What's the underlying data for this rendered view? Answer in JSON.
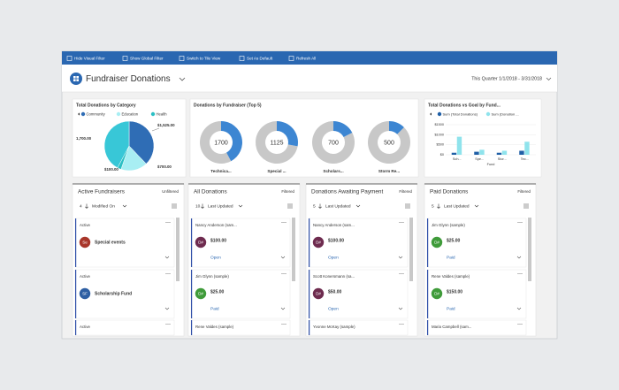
{
  "toolbar": [
    "Hide Visual Filter",
    "Show Global Filter",
    "Switch to Tile View",
    "Set As Default",
    "Refresh All"
  ],
  "header": {
    "title": "Fundraiser Donations",
    "period": "This Quarter 1/1/2018 - 3/31/2018"
  },
  "charts": [
    {
      "type": "pie",
      "title": "Total Donations by Category",
      "legend": [
        {
          "name": "Community",
          "color": "#2f6db5"
        },
        {
          "name": "Education",
          "color": "#a8eef3"
        },
        {
          "name": "Health",
          "color": "#2bbfc4"
        }
      ],
      "values": [
        1525,
        700,
        100,
        1700
      ],
      "value_labels": [
        "$1,525.00",
        "$700.00",
        "$100.00",
        "1,700.00"
      ],
      "colors": [
        "#2f6db5",
        "#a8eef3",
        "#2bbfc4",
        "#38c7d7"
      ]
    },
    {
      "type": "donut",
      "title": "Donations by Fundraiser (Top 5)",
      "categories": [
        "Technica...",
        "Special ...",
        "Scholars...",
        "Storm Re..."
      ],
      "values": [
        1700,
        1125,
        700,
        500
      ],
      "color": "#3d86d2",
      "rest_color": "#c8c8c8"
    },
    {
      "type": "bar",
      "title": "Total Donations vs Goal by Fund...",
      "x_label": "Fund",
      "categories": [
        "Sch...",
        "Spe...",
        "Stor...",
        "Tec..."
      ],
      "series": [
        {
          "name": "Sum (Total Donations)",
          "color": "#1f5fa6",
          "values": [
            100,
            150,
            100,
            200
          ]
        },
        {
          "name": "Sum (Donation ...",
          "color": "#8fe3ec",
          "values": [
            900,
            250,
            200,
            650
          ]
        }
      ],
      "ylim": [
        0,
        1500
      ],
      "yticks": [
        {
          "value": 0,
          "label": "$0"
        },
        {
          "value": 500,
          "label": "$500"
        },
        {
          "value": 1000,
          "label": "$1000"
        },
        {
          "value": 1500,
          "label": "$1500"
        }
      ],
      "grid": true
    }
  ],
  "lists": [
    {
      "title": "Active Fundraisers",
      "filter": "Unfiltered",
      "count": "4",
      "sort": "Modified On",
      "items": [
        {
          "status": "Active",
          "initials": "Se",
          "name": "Special events",
          "avatar_color": "#a8362a"
        },
        {
          "status": "Active",
          "initials": "SF",
          "name": "Scholarship Fund",
          "avatar_color": "#2e5fa3"
        },
        {
          "status": "Active"
        }
      ]
    },
    {
      "title": "All Donations",
      "filter": "Filtered",
      "count": "10",
      "sort": "Last Updated",
      "items": [
        {
          "name": "Nancy Anderson (sam...",
          "initials": "D#",
          "amount": "$100.00",
          "status": "Open",
          "avatar_color": "#6e2b4f"
        },
        {
          "name": "Jim Glynn (sample)",
          "initials": "D#",
          "amount": "$25.00",
          "status": "Paid",
          "avatar_color": "#3f9b3a"
        },
        {
          "name": "Rene Valdes (sample)"
        }
      ]
    },
    {
      "title": "Donations Awaiting Payment",
      "filter": "Filtered",
      "count": "5",
      "sort": "Last Updated",
      "items": [
        {
          "name": "Nancy Anderson (sam...",
          "initials": "D#",
          "amount": "$100.00",
          "status": "Open",
          "avatar_color": "#6e2b4f"
        },
        {
          "name": "Scott Konersmann (sa...",
          "initials": "D#",
          "amount": "$50.00",
          "status": "Open",
          "avatar_color": "#6e2b4f"
        },
        {
          "name": "Yvonne McKay (sample)"
        }
      ]
    },
    {
      "title": "Paid Donations",
      "filter": "Filtered",
      "count": "5",
      "sort": "Last Updated",
      "items": [
        {
          "name": "Jim Glynn (sample)",
          "initials": "D#",
          "amount": "$25.00",
          "status": "Paid",
          "avatar_color": "#3f9b3a"
        },
        {
          "name": "Rene Valdes (sample)",
          "initials": "D#",
          "amount": "$150.00",
          "status": "Paid",
          "avatar_color": "#3f9b3a"
        },
        {
          "name": "Maria Campbell (sam..."
        }
      ]
    }
  ]
}
